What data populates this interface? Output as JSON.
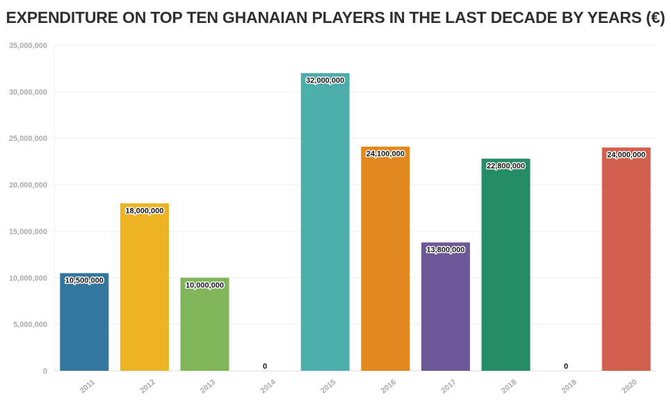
{
  "chart_data": {
    "type": "bar",
    "title": "EXPENDITURE ON TOP TEN GHANAIAN PLAYERS IN THE LAST DECADE BY YEARS (€)",
    "xlabel": "",
    "ylabel": "",
    "categories": [
      "2011",
      "2012",
      "2013",
      "2014",
      "2015",
      "2016",
      "2017",
      "2018",
      "2019",
      "2020"
    ],
    "values": [
      10500000,
      18000000,
      10000000,
      0,
      32000000,
      24100000,
      13800000,
      22800000,
      0,
      24000000
    ],
    "value_labels": [
      "10,500,000",
      "18,000,000",
      "10,000,000",
      "0",
      "32,000,000",
      "24,100,000",
      "13,800,000",
      "22,800,000",
      "0",
      "24,000,000"
    ],
    "colors": [
      "#33769e",
      "#ecb322",
      "#80b65a",
      "#4b4b4b",
      "#4caeaa",
      "#e1891f",
      "#6d5897",
      "#248d65",
      "#4b4b4b",
      "#d2604f"
    ],
    "ylim": [
      0,
      35000000
    ],
    "yticks": [
      0,
      5000000,
      10000000,
      15000000,
      20000000,
      25000000,
      30000000,
      35000000
    ],
    "ytick_labels": [
      "0",
      "5,000,000",
      "10,000,000",
      "15,000,000",
      "20,000,000",
      "25,000,000",
      "30,000,000",
      "35,000,000"
    ],
    "grid": true,
    "legend": "none"
  }
}
